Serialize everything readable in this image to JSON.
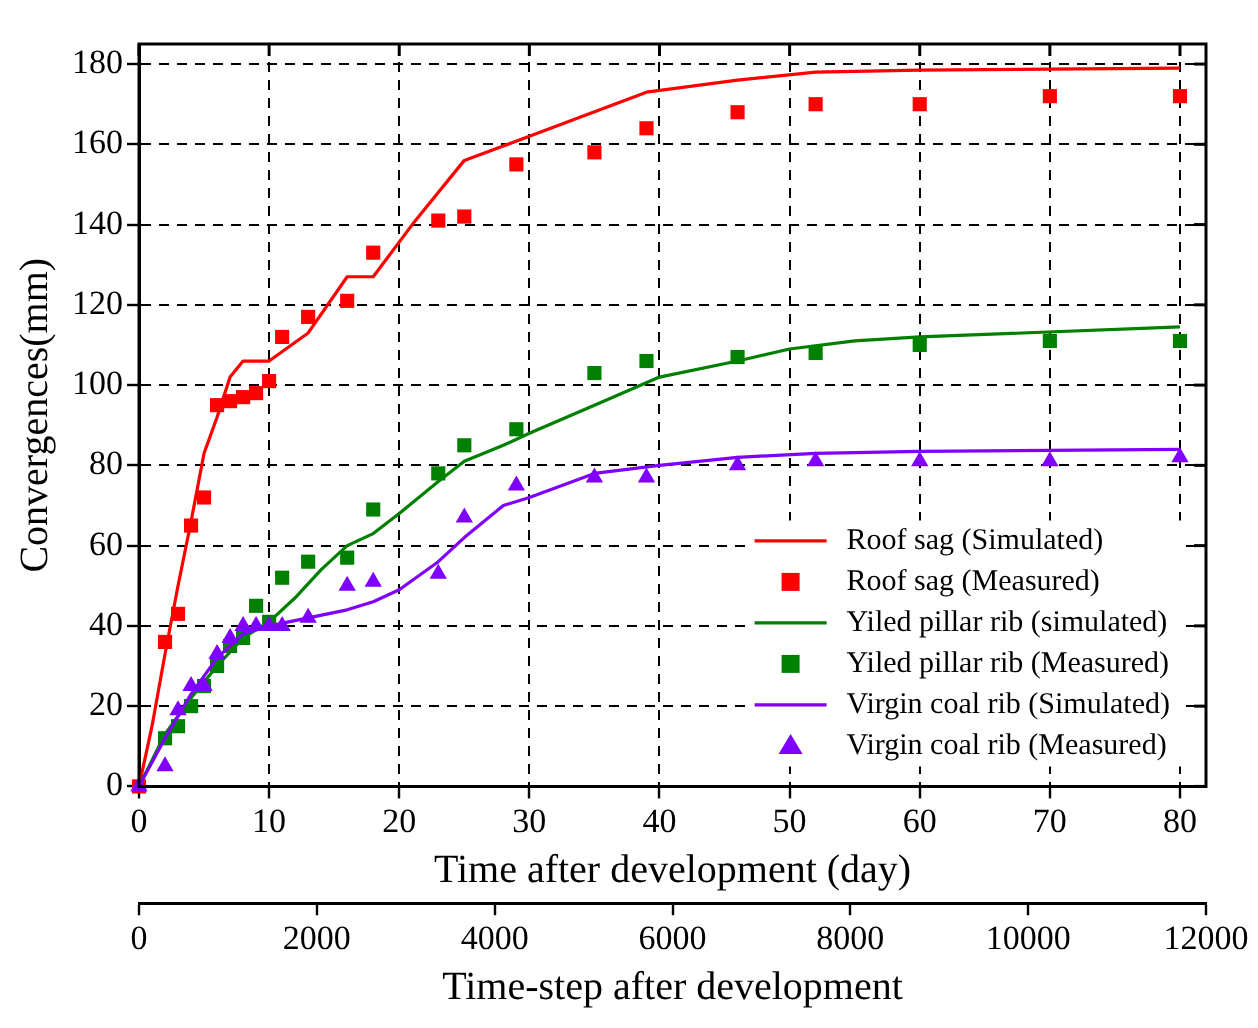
{
  "chart_data": {
    "type": "line",
    "xlabel": "Time after development (day)",
    "ylabel": "Convergences(mm)",
    "x2label": "Time-step after development",
    "xlim": [
      0,
      82
    ],
    "xticks": [
      0,
      10,
      20,
      30,
      40,
      50,
      60,
      70,
      80
    ],
    "x2lim": [
      0,
      12000
    ],
    "x2ticks": [
      0,
      2000,
      4000,
      6000,
      8000,
      10000,
      12000
    ],
    "ylim": [
      0,
      185
    ],
    "yticks": [
      0,
      20,
      40,
      60,
      80,
      100,
      120,
      140,
      160,
      180
    ],
    "grid": true,
    "legend": "bottom right",
    "series": [
      {
        "name": "Roof sag (Simulated)",
        "marker": "none",
        "line_style": "solid",
        "color": "#ff0000",
        "x": [
          0,
          1,
          2,
          3,
          4,
          5,
          6,
          7,
          8,
          10,
          13,
          16,
          18,
          21,
          25,
          30,
          39,
          46,
          52,
          60,
          80
        ],
        "values": [
          0,
          15,
          33,
          50,
          66,
          83,
          92,
          102,
          106,
          106,
          113,
          127,
          127,
          140,
          156,
          162,
          173,
          176,
          178,
          178.5,
          179
        ]
      },
      {
        "name": "Roof sag (Measured)",
        "type": "scatter",
        "marker": "square",
        "color": "#ff0000",
        "x": [
          0,
          2,
          3,
          4,
          5,
          6,
          7,
          8,
          9,
          10,
          11,
          13,
          16,
          18,
          23,
          25,
          29,
          35,
          39,
          46,
          52,
          60,
          70,
          80
        ],
        "values": [
          0,
          36,
          43,
          65,
          72,
          95,
          96,
          97,
          98,
          101,
          112,
          117,
          121,
          133,
          141,
          142,
          155,
          158,
          164,
          168,
          170,
          170,
          172,
          172
        ]
      },
      {
        "name": "Yiled pillar rib (simulated)",
        "marker": "none",
        "line_style": "solid",
        "color": "#008000",
        "x": [
          0,
          2,
          4,
          6,
          8,
          10,
          12,
          14,
          16,
          18,
          20,
          23,
          25,
          28,
          30,
          35,
          40,
          46,
          50,
          55,
          60,
          80
        ],
        "values": [
          0,
          13,
          22,
          30,
          37,
          41,
          47,
          54,
          60,
          63,
          68,
          76,
          81,
          85,
          88,
          95,
          102,
          106,
          109,
          111,
          112,
          114.5
        ]
      },
      {
        "name": "Yiled pillar rib (Measured)",
        "type": "scatter",
        "marker": "square",
        "color": "#008000",
        "x": [
          2,
          3,
          4,
          5,
          6,
          7,
          8,
          9,
          10,
          11,
          13,
          16,
          18,
          23,
          25,
          29,
          35,
          39,
          46,
          52,
          60,
          70,
          80
        ],
        "values": [
          12,
          15,
          20,
          25,
          30,
          35,
          37,
          45,
          41,
          52,
          56,
          57,
          69,
          78,
          85,
          89,
          103,
          106,
          107,
          108,
          110,
          111,
          111
        ]
      },
      {
        "name": "Virgin coal rib (Simulated)",
        "marker": "none",
        "line_style": "solid",
        "color": "#8000ff",
        "x": [
          0,
          2,
          4,
          6,
          8,
          10,
          13,
          16,
          18,
          20,
          23,
          25,
          28,
          30,
          35,
          40,
          46,
          52,
          60,
          80
        ],
        "values": [
          0,
          12,
          23,
          32,
          38,
          40,
          42,
          44,
          46,
          49,
          56,
          62,
          70,
          72,
          78,
          80,
          82,
          83,
          83.5,
          84
        ]
      },
      {
        "name": "Virgin coal rib (Measured)",
        "type": "scatter",
        "marker": "triangle",
        "color": "#8000ff",
        "x": [
          0,
          2,
          3,
          4,
          5,
          6,
          7,
          8,
          9,
          10,
          11,
          13,
          16,
          18,
          23,
          25,
          29,
          35,
          39,
          46,
          52,
          60,
          70,
          80
        ],
        "values": [
          0,
          5,
          19,
          25,
          25,
          33,
          37,
          40,
          40,
          40,
          40,
          42,
          50,
          51,
          53,
          67,
          75,
          77,
          77,
          80,
          81,
          81,
          81,
          82
        ]
      }
    ]
  }
}
